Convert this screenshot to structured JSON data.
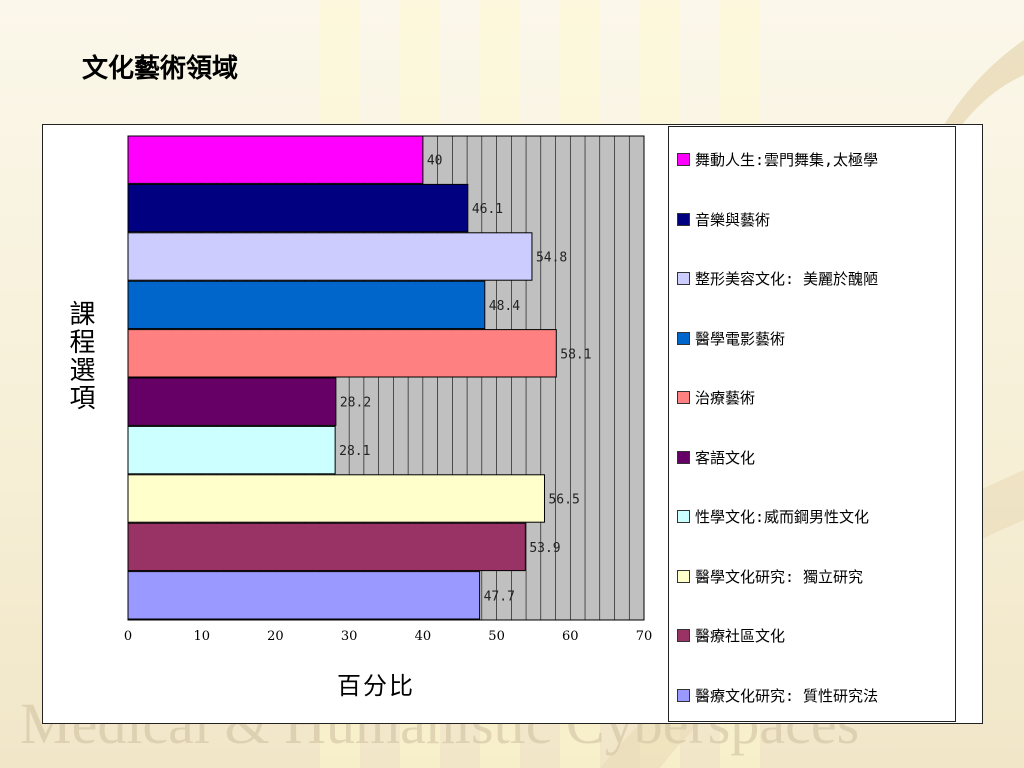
{
  "slide": {
    "title": "文化藝術領域",
    "watermark": "Medical & Humanistic Cyberspaces"
  },
  "chart_data": {
    "type": "bar",
    "orientation": "horizontal",
    "xlabel": "百分比",
    "ylabel": "課程選項",
    "xlim": [
      0,
      70
    ],
    "xticks": [
      0,
      10,
      20,
      30,
      40,
      50,
      60,
      70
    ],
    "grid": "vertical",
    "legend_position": "right",
    "series": [
      {
        "name": "舞動人生:雲門舞集,太極學",
        "value": 40,
        "label": "40",
        "color": "#ff00ff"
      },
      {
        "name": "音樂與藝術",
        "value": 46.1,
        "label": "46.1",
        "color": "#000080"
      },
      {
        "name": "整形美容文化: 美麗於醜陋",
        "value": 54.8,
        "label": "54.8",
        "color": "#ccccff"
      },
      {
        "name": "醫學電影藝術",
        "value": 48.4,
        "label": "48.4",
        "color": "#0066cc"
      },
      {
        "name": "治療藝術",
        "value": 58.1,
        "label": "58.1",
        "color": "#ff8080"
      },
      {
        "name": "客語文化",
        "value": 28.2,
        "label": "28.2",
        "color": "#660066"
      },
      {
        "name": "性學文化:威而鋼男性文化",
        "value": 28.1,
        "label": "28.1",
        "color": "#ccffff"
      },
      {
        "name": "醫學文化研究: 獨立研究",
        "value": 56.5,
        "label": "56.5",
        "color": "#ffffcc"
      },
      {
        "name": "醫療社區文化",
        "value": 53.9,
        "label": "53.9",
        "color": "#993366"
      },
      {
        "name": "醫療文化研究: 質性研究法",
        "value": 47.7,
        "label": "47.7",
        "color": "#9999ff"
      }
    ]
  }
}
